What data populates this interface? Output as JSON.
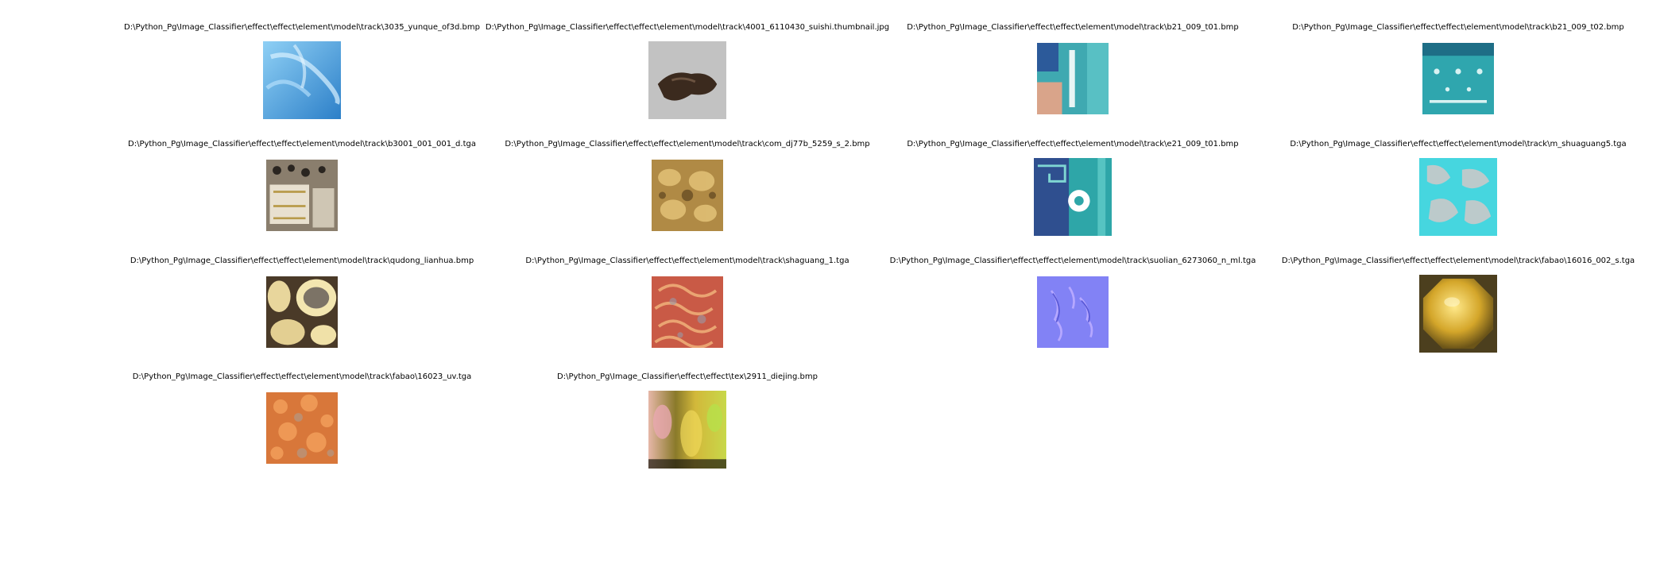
{
  "items": [
    {
      "path": "D:\\Python_Pg\\Image_Classifier\\effect\\effect\\element\\model\\track\\3035_yunque_of3d.bmp",
      "thumb": "blue-feather-texture"
    },
    {
      "path": "D:\\Python_Pg\\Image_Classifier\\effect\\effect\\element\\model\\track\\4001_6110430_suishi.thumbnail.jpg",
      "thumb": "dark-rock-debris"
    },
    {
      "path": "D:\\Python_Pg\\Image_Classifier\\effect\\effect\\element\\model\\track\\b21_009_t01.bmp",
      "thumb": "teal-costume-texture"
    },
    {
      "path": "D:\\Python_Pg\\Image_Classifier\\effect\\effect\\element\\model\\track\\b21_009_t02.bmp",
      "thumb": "teal-patterned-cloth"
    },
    {
      "path": "D:\\Python_Pg\\Image_Classifier\\effect\\effect\\element\\model\\track\\b3001_001_001_d.tga",
      "thumb": "armor-parts-atlas"
    },
    {
      "path": "D:\\Python_Pg\\Image_Classifier\\effect\\effect\\element\\model\\track\\com_dj77b_5259_s_2.bmp",
      "thumb": "golden-ornament-texture"
    },
    {
      "path": "D:\\Python_Pg\\Image_Classifier\\effect\\effect\\element\\model\\track\\e21_009_t01.bmp",
      "thumb": "teal-ornament-flower"
    },
    {
      "path": "D:\\Python_Pg\\Image_Classifier\\effect\\effect\\element\\model\\track\\m_shuaguang5.tga",
      "thumb": "cyan-caustic-texture"
    },
    {
      "path": "D:\\Python_Pg\\Image_Classifier\\effect\\effect\\element\\model\\track\\qudong_lianhua.bmp",
      "thumb": "gold-lotus-rings"
    },
    {
      "path": "D:\\Python_Pg\\Image_Classifier\\effect\\effect\\element\\model\\track\\shaguang_1.tga",
      "thumb": "red-swirl-texture"
    },
    {
      "path": "D:\\Python_Pg\\Image_Classifier\\effect\\effect\\element\\model\\track\\suolian_6273060_n_ml.tga",
      "thumb": "purple-normal-map"
    },
    {
      "path": "D:\\Python_Pg\\Image_Classifier\\effect\\effect\\element\\model\\track\\fabao\\16016_002_s.tga",
      "thumb": "gold-sphere"
    },
    {
      "path": "D:\\Python_Pg\\Image_Classifier\\effect\\effect\\element\\model\\track\\fabao\\16023_uv.tga",
      "thumb": "orange-noise-texture"
    },
    {
      "path": "D:\\Python_Pg\\Image_Classifier\\effect\\effect\\tex\\2911_diejing.bmp",
      "thumb": "yellow-green-gradient-strip"
    }
  ]
}
